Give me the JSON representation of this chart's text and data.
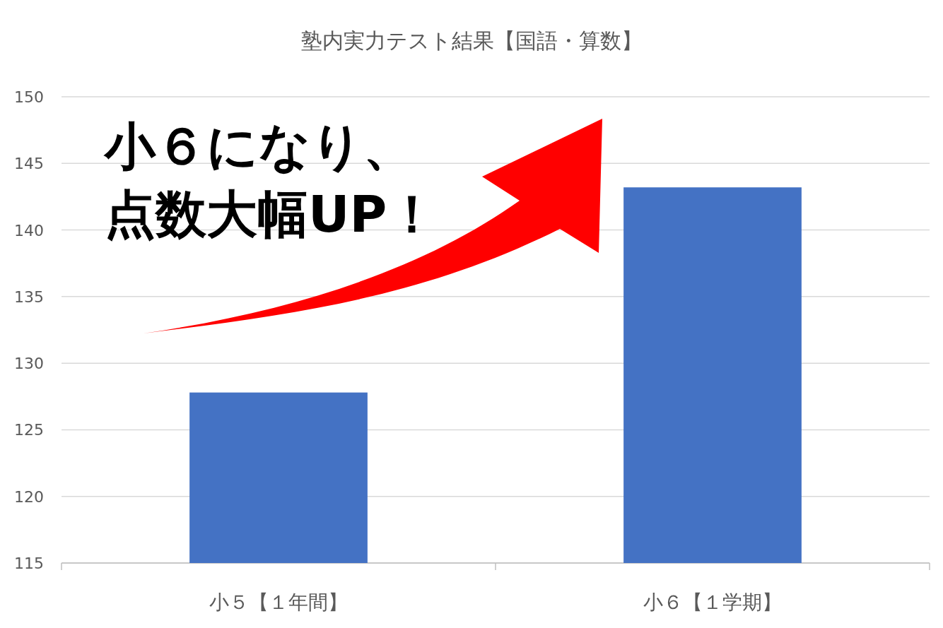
{
  "chart_data": {
    "type": "bar",
    "title": "塾内実力テスト結果【国語・算数】",
    "categories": [
      "小５【１年間】",
      "小６【１学期】"
    ],
    "values": [
      127.8,
      143.2
    ],
    "color": "#4472c4",
    "ylim": [
      115,
      150
    ],
    "yticks": [
      115,
      120,
      125,
      130,
      135,
      140,
      145,
      150
    ],
    "grid": "y",
    "annotations": [
      "小６になり、",
      "点数大幅UP！"
    ]
  }
}
